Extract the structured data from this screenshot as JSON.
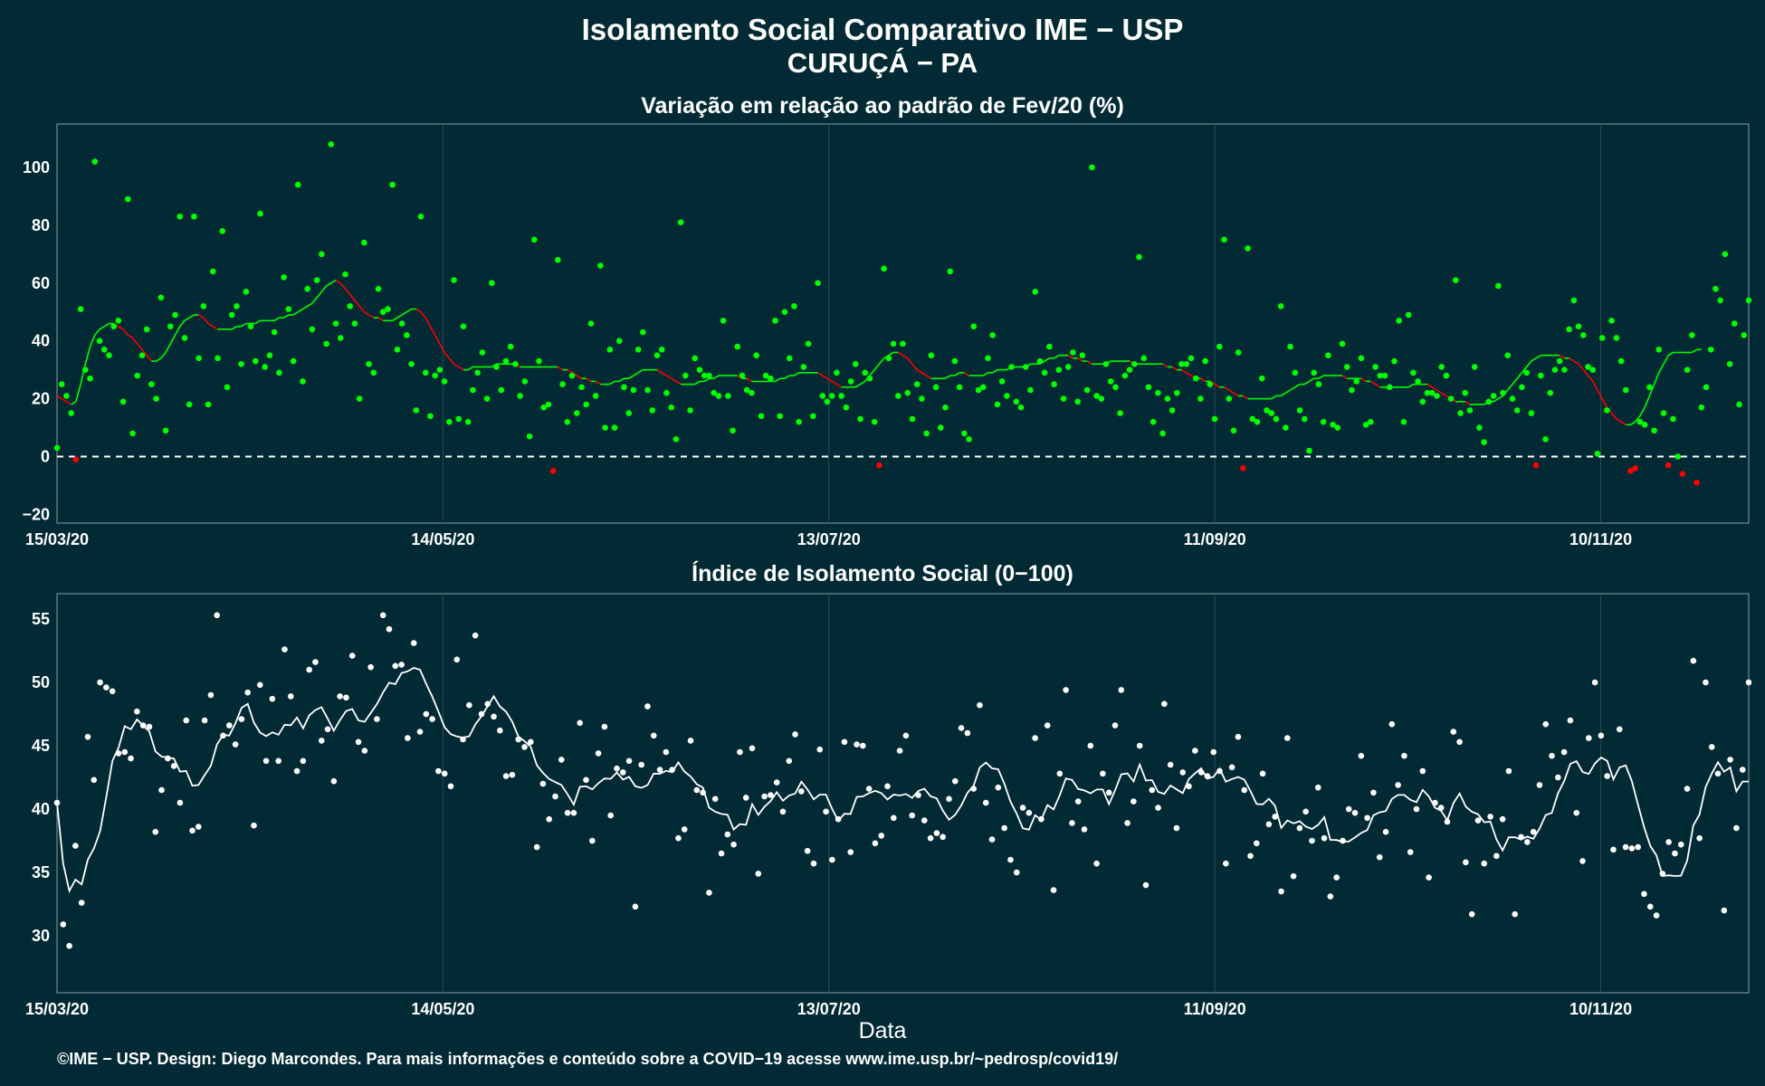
{
  "title": "Isolamento Social Comparativo IME − USP",
  "location": "CURUÇÁ − PA",
  "footer": "©IME − USP. Design: Diego Marcondes. Para mais informações e conteúdo sobre a COVID−19 acesse www.ime.usp.br/~pedrosp/covid19/",
  "colors": {
    "background": "#012a34",
    "positive": "#00ff00",
    "negative": "#ff0000",
    "index": "#ffffff",
    "grid": "#2c4a52"
  },
  "chart_data": [
    {
      "type": "scatter",
      "title": "Variação em relação ao padrão de Fev/20 (%)",
      "xlabel": "",
      "ylabel": "",
      "x_start": "15/03/20",
      "x_end": "03/12/20",
      "x_ticks": [
        "15/03/20",
        "14/05/20",
        "13/07/20",
        "11/09/20",
        "10/11/20"
      ],
      "y_ticks": [
        -20,
        0,
        20,
        40,
        60,
        80,
        100
      ],
      "ylim": [
        -23,
        115
      ],
      "reference_line": 0,
      "grid": true,
      "series": [
        {
          "values": [
            3,
            25,
            21,
            15,
            -1,
            51,
            30,
            27,
            102,
            40,
            37,
            35,
            45,
            47,
            19,
            89,
            8,
            28,
            35,
            44,
            25,
            20,
            55,
            9,
            45,
            49,
            83,
            41,
            18,
            83,
            34,
            52,
            18,
            64,
            34,
            78,
            24,
            49,
            52,
            32,
            57,
            45,
            33,
            84,
            31,
            35,
            43,
            29,
            62,
            51,
            33,
            94,
            26,
            58,
            44,
            61,
            70,
            39,
            108,
            46,
            41,
            63,
            52,
            46,
            20,
            74,
            32,
            29,
            58,
            50,
            51,
            94,
            37,
            46,
            42,
            32,
            16,
            83,
            29,
            14,
            28,
            30,
            26,
            12,
            61,
            13,
            45,
            12,
            23,
            29,
            36,
            20,
            60,
            31,
            23,
            33,
            38,
            32,
            21,
            26,
            7,
            75,
            33,
            17,
            18,
            -5,
            68,
            25,
            12,
            28,
            15,
            24,
            18,
            46,
            21,
            66,
            10,
            37,
            10,
            40,
            24,
            15,
            23,
            37,
            43,
            23,
            16,
            35,
            37,
            22,
            17,
            6,
            81,
            28,
            16,
            34,
            30,
            28,
            28,
            22,
            21,
            47,
            21,
            9,
            38,
            28,
            23,
            22,
            35,
            14,
            28,
            27,
            47,
            14,
            50,
            34,
            52,
            12,
            31,
            39,
            14,
            60,
            21,
            19,
            21,
            29,
            21,
            17,
            26,
            32,
            13,
            29,
            27,
            12,
            -3,
            65,
            34,
            39,
            21,
            39,
            22,
            13,
            25,
            20,
            8,
            35,
            24,
            10,
            17,
            64,
            33,
            24,
            8,
            6,
            45,
            23,
            24,
            34,
            42,
            18,
            26,
            21,
            31,
            19,
            17,
            31,
            23,
            57,
            33,
            29,
            38,
            25,
            30,
            20,
            31,
            36,
            19,
            35,
            23,
            100,
            21,
            20,
            32,
            26,
            24,
            15,
            28,
            30,
            32,
            69,
            34,
            24,
            12,
            22,
            8,
            20,
            16,
            22,
            32,
            32,
            34,
            27,
            20,
            33,
            25,
            13,
            38,
            75,
            20,
            9,
            36,
            -4,
            72,
            13,
            12,
            27,
            16,
            15,
            13,
            52,
            10,
            38,
            29,
            16,
            13,
            2,
            29,
            25,
            12,
            35,
            11,
            10,
            39,
            31,
            23,
            26,
            34,
            11,
            12,
            31,
            28,
            28,
            24,
            33,
            47,
            12,
            49,
            29,
            26,
            19,
            22,
            22,
            21,
            31,
            28,
            20,
            61,
            15,
            22,
            16,
            31,
            10,
            5,
            19,
            21,
            59,
            22,
            35,
            20,
            16,
            24,
            29,
            15,
            -3,
            28,
            6,
            22,
            30,
            33,
            30,
            44,
            54,
            45,
            42,
            31,
            30,
            1,
            41,
            16,
            47,
            41,
            33,
            23,
            -5,
            -4,
            12,
            11,
            24,
            9,
            37,
            15,
            -3,
            13,
            0,
            -6,
            30,
            42,
            -9,
            17,
            24,
            37,
            58,
            54,
            70,
            32,
            46,
            18,
            42,
            54
          ],
          "moving_average": [
            21,
            20,
            19,
            18,
            19,
            25,
            32,
            38,
            42,
            44,
            45,
            46,
            46,
            45,
            44,
            42,
            41,
            39,
            37,
            35,
            33,
            33,
            34,
            36,
            39,
            42,
            45,
            47,
            48,
            49,
            49,
            48,
            46,
            45,
            44,
            44,
            44,
            44,
            45,
            45,
            46,
            46,
            46,
            47,
            47,
            47,
            47,
            48,
            48,
            49,
            49,
            50,
            51,
            52,
            53,
            55,
            57,
            59,
            60,
            61,
            60,
            58,
            56,
            54,
            52,
            50,
            49,
            48,
            48,
            47,
            47,
            47,
            48,
            49,
            50,
            51,
            51,
            50,
            48,
            45,
            42,
            39,
            36,
            34,
            32,
            31,
            30,
            30,
            31,
            31,
            31,
            31,
            31,
            32,
            32,
            32,
            32,
            32,
            31,
            31,
            31,
            31,
            31,
            31,
            31,
            31,
            31,
            30,
            30,
            29,
            28,
            27,
            27,
            26,
            26,
            25,
            25,
            25,
            26,
            26,
            27,
            27,
            28,
            29,
            30,
            30,
            30,
            30,
            29,
            28,
            27,
            26,
            25,
            25,
            25,
            25,
            26,
            26,
            27,
            27,
            28,
            28,
            28,
            28,
            28,
            27,
            27,
            26,
            26,
            26,
            26,
            26,
            26,
            27,
            27,
            28,
            28,
            29,
            29,
            29,
            29,
            29,
            28,
            27,
            26,
            25,
            24,
            24,
            24,
            24,
            25,
            26,
            28,
            30,
            32,
            34,
            35,
            36,
            36,
            35,
            34,
            32,
            30,
            29,
            28,
            27,
            27,
            27,
            27,
            28,
            28,
            29,
            29,
            28,
            28,
            28,
            28,
            29,
            29,
            30,
            30,
            30,
            31,
            31,
            31,
            31,
            32,
            32,
            32,
            33,
            34,
            34,
            35,
            35,
            35,
            34,
            34,
            33,
            33,
            32,
            32,
            32,
            32,
            33,
            33,
            33,
            33,
            33,
            32,
            32,
            32,
            32,
            32,
            32,
            32,
            31,
            31,
            30,
            30,
            29,
            28,
            27,
            27,
            26,
            26,
            25,
            24,
            24,
            23,
            22,
            21,
            21,
            20,
            20,
            20,
            20,
            20,
            20,
            21,
            21,
            22,
            23,
            24,
            25,
            25,
            26,
            27,
            27,
            28,
            28,
            28,
            28,
            28,
            27,
            27,
            27,
            27,
            26,
            26,
            25,
            24,
            24,
            24,
            24,
            24,
            24,
            24,
            25,
            25,
            25,
            25,
            24,
            23,
            22,
            21,
            20,
            19,
            19,
            19,
            18,
            18,
            18,
            18,
            19,
            19,
            20,
            21,
            23,
            25,
            27,
            29,
            31,
            33,
            34,
            35,
            35,
            35,
            35,
            35,
            34,
            34,
            33,
            32,
            30,
            28,
            26,
            23,
            20,
            17,
            15,
            13,
            12,
            11,
            11,
            12,
            14,
            17,
            21,
            25,
            29,
            32,
            35,
            36,
            36,
            36,
            36,
            36,
            37,
            37
          ]
        }
      ]
    },
    {
      "type": "scatter",
      "title": "Índice de Isolamento Social (0−100)",
      "xlabel": "Data",
      "ylabel": "",
      "x_start": "15/03/20",
      "x_end": "03/12/20",
      "x_ticks": [
        "15/03/20",
        "14/05/20",
        "13/07/20",
        "11/09/20",
        "10/11/20"
      ],
      "y_ticks": [
        30,
        35,
        40,
        45,
        50,
        55
      ],
      "ylim": [
        25.5,
        57
      ],
      "grid": true,
      "series": [
        {
          "values": [
            40.5,
            30.9,
            29.2,
            37.1,
            32.6,
            45.7,
            42.3,
            50,
            49.6,
            49.3,
            44.4,
            44.5,
            44,
            47.7,
            46.6,
            46.5,
            38.2,
            41.5,
            44,
            43.4,
            40.5,
            47,
            38.3,
            38.6,
            47,
            49,
            55.3,
            45.8,
            46.6,
            45.1,
            47.1,
            49.2,
            38.7,
            49.8,
            43.8,
            48.7,
            43.8,
            52.6,
            48.9,
            43,
            43.8,
            51,
            51.6,
            45.4,
            46.3,
            42.2,
            48.9,
            48.8,
            52.1,
            45.3,
            44.6,
            51.2,
            47.1,
            55.3,
            54.2,
            51.3,
            51.4,
            45.6,
            53.1,
            46.1,
            47.5,
            47.1,
            43,
            42.8,
            41.8,
            51.8,
            45.5,
            48.2,
            53.7,
            47.5,
            48.3,
            47.3,
            46.2,
            42.6,
            42.7,
            45.5,
            44.9,
            45.3,
            37,
            42,
            39.2,
            41,
            43.9,
            39.7,
            39.7,
            46.8,
            42.3,
            37.5,
            44.4,
            46.5,
            39.5,
            43.2,
            42.9,
            43.8,
            32.3,
            43.5,
            48.1,
            45.8,
            43.1,
            44.5,
            43.1,
            37.7,
            38.4,
            45.4,
            41.5,
            41.3,
            33.4,
            40.8,
            36.5,
            38,
            37.2,
            44.5,
            40.9,
            44.8,
            34.9,
            41,
            41.1,
            42.1,
            39.8,
            43.8,
            45.9,
            41.4,
            36.7,
            35.7,
            44.7,
            39.8,
            36,
            39.2,
            45.3,
            36.6,
            45.1,
            45,
            41.6,
            37.3,
            37.9,
            41.8,
            39.3,
            44.6,
            45.8,
            39.5,
            41.1,
            39.1,
            37.7,
            38.1,
            37.8,
            40.8,
            42.2,
            46.4,
            46,
            41.6,
            48.2,
            40.5,
            37.6,
            41.7,
            38.5,
            36,
            35,
            40.1,
            39.7,
            45.6,
            39.2,
            46.6,
            33.6,
            42.8,
            49.4,
            38.9,
            40.6,
            38.4,
            45,
            35.7,
            42.8,
            41.3,
            46.6,
            49.4,
            38.9,
            40.6,
            45,
            34,
            41.5,
            40.1,
            48.3,
            43.5,
            38.5,
            42.9,
            41.8,
            44.6,
            42.9,
            42.6,
            44.5,
            43,
            35.7,
            43.3,
            45.7,
            41.5,
            36.3,
            37.3,
            42.8,
            38.8,
            39.4,
            33.5,
            45.6,
            34.7,
            38.5,
            39.8,
            37.5,
            41.7,
            37.7,
            33.1,
            34.6,
            37.5,
            40,
            39.7,
            44.2,
            39.3,
            41.3,
            36.2,
            38.2,
            46.7,
            41.9,
            44.2,
            36.6,
            40,
            43,
            34.6,
            40.5,
            40.1,
            39,
            46.1,
            45.3,
            35.8,
            31.7,
            39.1,
            35.7,
            39.4,
            36.3,
            39.2,
            43,
            31.7,
            37.8,
            37.4,
            38.2,
            41.9,
            46.7,
            44.2,
            42.5,
            44.5,
            47,
            39.7,
            35.9,
            45.6,
            50,
            45.8,
            42.6,
            36.8,
            46.3,
            37,
            36.9,
            37,
            33.3,
            32.3,
            31.6,
            34.9,
            37.4,
            36.5,
            37.2,
            41.6,
            51.7,
            37.7,
            50,
            44.9,
            42.8,
            32,
            43.9,
            38.5,
            43.1,
            50
          ]
        }
      ]
    }
  ]
}
